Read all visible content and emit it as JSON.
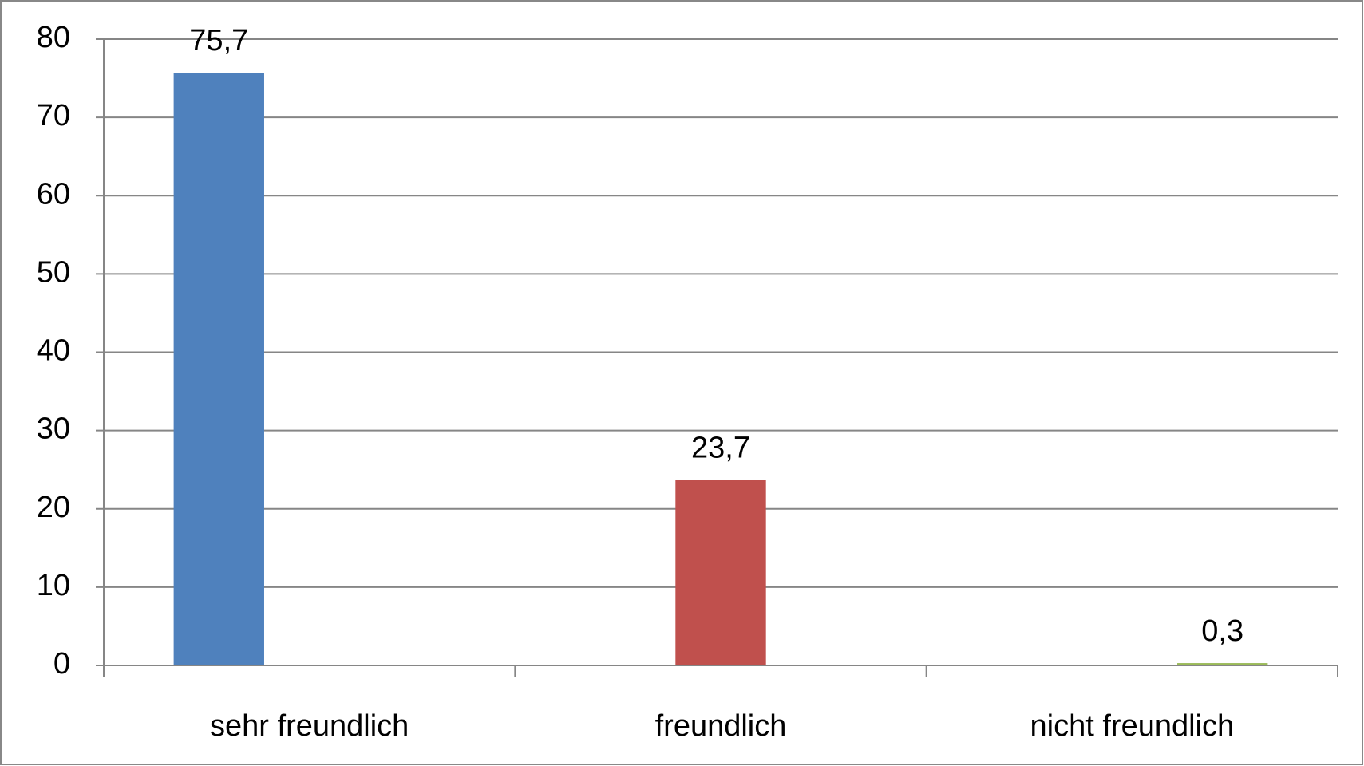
{
  "chart_data": {
    "type": "bar",
    "categories": [
      "sehr freundlich",
      "freundlich",
      "nicht freundlich"
    ],
    "series": [
      {
        "color": "#4f81bd",
        "values": [
          75.7,
          null,
          null
        ],
        "value_labels": [
          "75,7",
          null,
          null
        ]
      },
      {
        "color": "#c0504d",
        "values": [
          null,
          23.7,
          null
        ],
        "value_labels": [
          null,
          "23,7",
          null
        ]
      },
      {
        "color": "#9bbb59",
        "values": [
          null,
          null,
          0.3
        ],
        "value_labels": [
          null,
          null,
          "0,3"
        ]
      }
    ],
    "ylim": [
      0,
      80
    ],
    "yticks": [
      0,
      10,
      20,
      30,
      40,
      50,
      60,
      70,
      80
    ],
    "grid": true
  }
}
